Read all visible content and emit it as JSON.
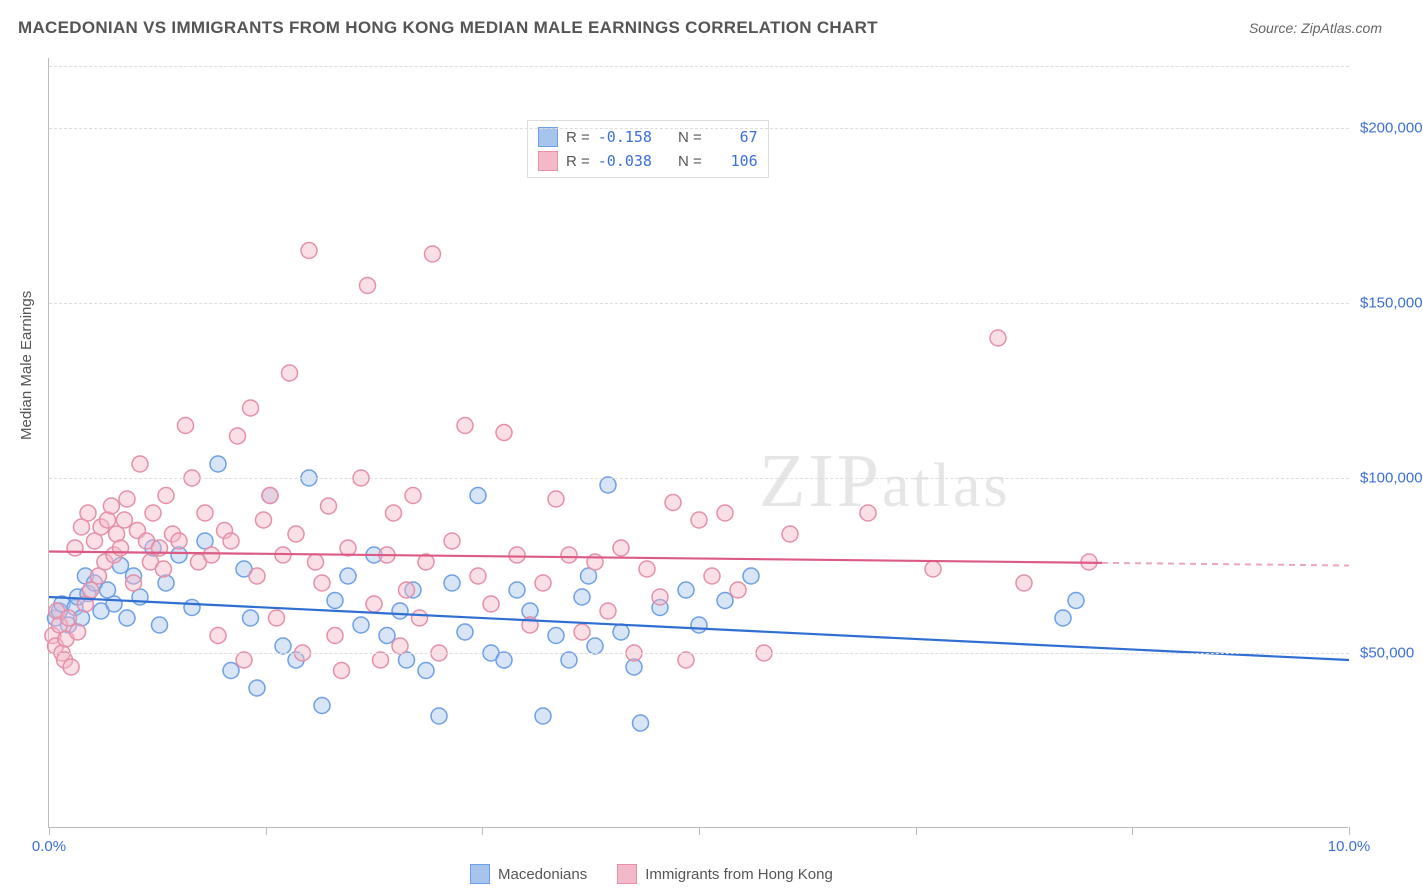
{
  "title": "MACEDONIAN VS IMMIGRANTS FROM HONG KONG MEDIAN MALE EARNINGS CORRELATION CHART",
  "source": "Source: ZipAtlas.com",
  "watermark": "ZIPatlas",
  "yaxis_title": "Median Male Earnings",
  "chart": {
    "type": "scatter",
    "xlim": [
      0,
      10
    ],
    "ylim": [
      0,
      220000
    ],
    "xtick_positions": [
      0,
      1.67,
      3.33,
      5.0,
      6.67,
      8.33,
      10.0
    ],
    "xtick_labels": {
      "0": "0.0%",
      "10": "10.0%"
    },
    "yticks": [
      50000,
      100000,
      150000,
      200000
    ],
    "ytick_labels": [
      "$50,000",
      "$100,000",
      "$150,000",
      "$200,000"
    ],
    "background_color": "#ffffff",
    "grid_color": "#dddddd",
    "axis_label_color": "#3b6fd6",
    "marker_radius": 8
  },
  "series": [
    {
      "name": "Macedonians",
      "stroke": "#6d9fe6",
      "fill": "#a7c5ec",
      "line_color": "#2f6fd1",
      "R": "-0.158",
      "N": "67",
      "regression": {
        "y_at_x0": 66000,
        "y_at_x10": 48000,
        "dash_from_x": 10
      },
      "points": [
        [
          0.05,
          60000
        ],
        [
          0.08,
          62000
        ],
        [
          0.1,
          64000
        ],
        [
          0.15,
          58000
        ],
        [
          0.2,
          63000
        ],
        [
          0.22,
          66000
        ],
        [
          0.25,
          60000
        ],
        [
          0.28,
          72000
        ],
        [
          0.3,
          67000
        ],
        [
          0.35,
          70000
        ],
        [
          0.4,
          62000
        ],
        [
          0.45,
          68000
        ],
        [
          0.5,
          64000
        ],
        [
          0.55,
          75000
        ],
        [
          0.6,
          60000
        ],
        [
          0.65,
          72000
        ],
        [
          0.7,
          66000
        ],
        [
          0.8,
          80000
        ],
        [
          0.85,
          58000
        ],
        [
          0.9,
          70000
        ],
        [
          1.0,
          78000
        ],
        [
          1.1,
          63000
        ],
        [
          1.2,
          82000
        ],
        [
          1.3,
          104000
        ],
        [
          1.4,
          45000
        ],
        [
          1.5,
          74000
        ],
        [
          1.55,
          60000
        ],
        [
          1.6,
          40000
        ],
        [
          1.7,
          95000
        ],
        [
          1.8,
          52000
        ],
        [
          1.9,
          48000
        ],
        [
          2.0,
          100000
        ],
        [
          2.1,
          35000
        ],
        [
          2.2,
          65000
        ],
        [
          2.3,
          72000
        ],
        [
          2.4,
          58000
        ],
        [
          2.5,
          78000
        ],
        [
          2.6,
          55000
        ],
        [
          2.7,
          62000
        ],
        [
          2.75,
          48000
        ],
        [
          2.8,
          68000
        ],
        [
          2.9,
          45000
        ],
        [
          3.0,
          32000
        ],
        [
          3.1,
          70000
        ],
        [
          3.2,
          56000
        ],
        [
          3.3,
          95000
        ],
        [
          3.4,
          50000
        ],
        [
          3.5,
          48000
        ],
        [
          3.6,
          68000
        ],
        [
          3.7,
          62000
        ],
        [
          3.8,
          32000
        ],
        [
          3.9,
          55000
        ],
        [
          4.0,
          48000
        ],
        [
          4.1,
          66000
        ],
        [
          4.15,
          72000
        ],
        [
          4.2,
          52000
        ],
        [
          4.3,
          98000
        ],
        [
          4.4,
          56000
        ],
        [
          4.5,
          46000
        ],
        [
          4.55,
          30000
        ],
        [
          4.7,
          63000
        ],
        [
          4.9,
          68000
        ],
        [
          5.0,
          58000
        ],
        [
          5.2,
          65000
        ],
        [
          5.4,
          72000
        ],
        [
          7.8,
          60000
        ],
        [
          7.9,
          65000
        ]
      ]
    },
    {
      "name": "Immigrants from Hong Kong",
      "stroke": "#e58fa8",
      "fill": "#f3b9c8",
      "line_color": "#dc5b86",
      "R": "-0.038",
      "N": "106",
      "regression": {
        "y_at_x0": 79000,
        "y_at_x10": 75000,
        "dash_from_x": 8.1
      },
      "points": [
        [
          0.03,
          55000
        ],
        [
          0.05,
          52000
        ],
        [
          0.06,
          62000
        ],
        [
          0.08,
          58000
        ],
        [
          0.1,
          50000
        ],
        [
          0.12,
          48000
        ],
        [
          0.13,
          54000
        ],
        [
          0.15,
          60000
        ],
        [
          0.17,
          46000
        ],
        [
          0.2,
          80000
        ],
        [
          0.22,
          56000
        ],
        [
          0.25,
          86000
        ],
        [
          0.28,
          64000
        ],
        [
          0.3,
          90000
        ],
        [
          0.32,
          68000
        ],
        [
          0.35,
          82000
        ],
        [
          0.38,
          72000
        ],
        [
          0.4,
          86000
        ],
        [
          0.43,
          76000
        ],
        [
          0.45,
          88000
        ],
        [
          0.48,
          92000
        ],
        [
          0.5,
          78000
        ],
        [
          0.52,
          84000
        ],
        [
          0.55,
          80000
        ],
        [
          0.58,
          88000
        ],
        [
          0.6,
          94000
        ],
        [
          0.65,
          70000
        ],
        [
          0.68,
          85000
        ],
        [
          0.7,
          104000
        ],
        [
          0.75,
          82000
        ],
        [
          0.78,
          76000
        ],
        [
          0.8,
          90000
        ],
        [
          0.85,
          80000
        ],
        [
          0.88,
          74000
        ],
        [
          0.9,
          95000
        ],
        [
          0.95,
          84000
        ],
        [
          1.0,
          82000
        ],
        [
          1.05,
          115000
        ],
        [
          1.1,
          100000
        ],
        [
          1.15,
          76000
        ],
        [
          1.2,
          90000
        ],
        [
          1.25,
          78000
        ],
        [
          1.3,
          55000
        ],
        [
          1.35,
          85000
        ],
        [
          1.4,
          82000
        ],
        [
          1.45,
          112000
        ],
        [
          1.5,
          48000
        ],
        [
          1.55,
          120000
        ],
        [
          1.6,
          72000
        ],
        [
          1.65,
          88000
        ],
        [
          1.7,
          95000
        ],
        [
          1.75,
          60000
        ],
        [
          1.8,
          78000
        ],
        [
          1.85,
          130000
        ],
        [
          1.9,
          84000
        ],
        [
          1.95,
          50000
        ],
        [
          2.0,
          165000
        ],
        [
          2.05,
          76000
        ],
        [
          2.1,
          70000
        ],
        [
          2.15,
          92000
        ],
        [
          2.2,
          55000
        ],
        [
          2.25,
          45000
        ],
        [
          2.3,
          80000
        ],
        [
          2.4,
          100000
        ],
        [
          2.45,
          155000
        ],
        [
          2.5,
          64000
        ],
        [
          2.55,
          48000
        ],
        [
          2.6,
          78000
        ],
        [
          2.65,
          90000
        ],
        [
          2.7,
          52000
        ],
        [
          2.75,
          68000
        ],
        [
          2.8,
          95000
        ],
        [
          2.85,
          60000
        ],
        [
          2.9,
          76000
        ],
        [
          2.95,
          164000
        ],
        [
          3.0,
          50000
        ],
        [
          3.1,
          82000
        ],
        [
          3.2,
          115000
        ],
        [
          3.3,
          72000
        ],
        [
          3.4,
          64000
        ],
        [
          3.5,
          113000
        ],
        [
          3.6,
          78000
        ],
        [
          3.7,
          58000
        ],
        [
          3.8,
          70000
        ],
        [
          3.9,
          94000
        ],
        [
          4.0,
          78000
        ],
        [
          4.1,
          56000
        ],
        [
          4.2,
          76000
        ],
        [
          4.3,
          62000
        ],
        [
          4.4,
          80000
        ],
        [
          4.5,
          50000
        ],
        [
          4.6,
          74000
        ],
        [
          4.7,
          66000
        ],
        [
          4.8,
          93000
        ],
        [
          4.9,
          48000
        ],
        [
          5.0,
          88000
        ],
        [
          5.1,
          72000
        ],
        [
          5.2,
          90000
        ],
        [
          5.3,
          68000
        ],
        [
          5.5,
          50000
        ],
        [
          5.7,
          84000
        ],
        [
          6.3,
          90000
        ],
        [
          6.8,
          74000
        ],
        [
          7.3,
          140000
        ],
        [
          7.5,
          70000
        ],
        [
          8.0,
          76000
        ]
      ]
    }
  ],
  "legend_stats": {
    "r_label": "R =",
    "n_label": "N ="
  }
}
